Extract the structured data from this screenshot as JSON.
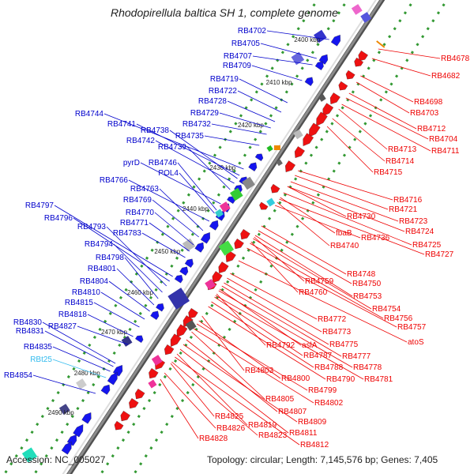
{
  "title": "Rhodopirellula baltica SH 1, complete genome",
  "accession": "Accession: NC_005027",
  "topology": "Topology: circular; Length: 7,145,576 bp; Genes: 7,405",
  "colors": {
    "backbone": "#8c8c8c",
    "forward_label": "#0000cc",
    "reverse_label": "#ee0000",
    "rna_label": "#33bbee",
    "tick_dots": "#339933"
  },
  "ticks": [
    "2400 kbp",
    "2410 kbp",
    "2420 kbp",
    "2430 kbp",
    "2440 kbp",
    "2450 kbp",
    "2460 kbp",
    "2470 kbp",
    "2480 kbp",
    "2490 kbp"
  ],
  "forward_labels": [
    "RB4702",
    "RB4705",
    "RB4707",
    "RB4709",
    "RB4719",
    "RB4722",
    "RB4728",
    "RB4729",
    "RB4744",
    "RB4741",
    "RB4738",
    "RB4732",
    "RB4735",
    "RB4742",
    "RB4739",
    "pyrD",
    "RB4746",
    "POL4",
    "RB4766",
    "RB4763",
    "RB4769",
    "RB4797",
    "RB4770",
    "RB4796",
    "RB4771",
    "RB4793",
    "RB4783",
    "RB4794",
    "RB4798",
    "RB4801",
    "RB4804",
    "RB4810",
    "RB4815",
    "RB4818",
    "RB4830",
    "RB4827",
    "RB4831",
    "RB4835",
    "RBt25",
    "RB4854"
  ],
  "reverse_labels": [
    "RB4678",
    "RB4682",
    "RB4698",
    "RB4703",
    "RB4712",
    "RB4704",
    "RB4713",
    "RB4711",
    "RB4714",
    "RB4715",
    "RB4716",
    "RB4721",
    "RB4730",
    "RB4723",
    "RB4724",
    "fbaB",
    "RB4736",
    "RB4725",
    "RB4740",
    "RB4727",
    "RB4748",
    "RB4759",
    "RB4750",
    "RB4760",
    "RB4753",
    "RB4754",
    "RB4756",
    "RB4757",
    "RB4772",
    "RB4773",
    "RB4775",
    "RB4792",
    "aslA",
    "atoS",
    "RB4787",
    "RB4777",
    "RB4788",
    "RB4778",
    "RB4790",
    "RB4781",
    "RB4803",
    "RB4800",
    "RB4799",
    "RB4805",
    "RB4802",
    "RB4807",
    "RB4809",
    "RB4825",
    "RB4819",
    "RB4811",
    "RB4826",
    "RB4823",
    "RB4828",
    "RB4812"
  ]
}
